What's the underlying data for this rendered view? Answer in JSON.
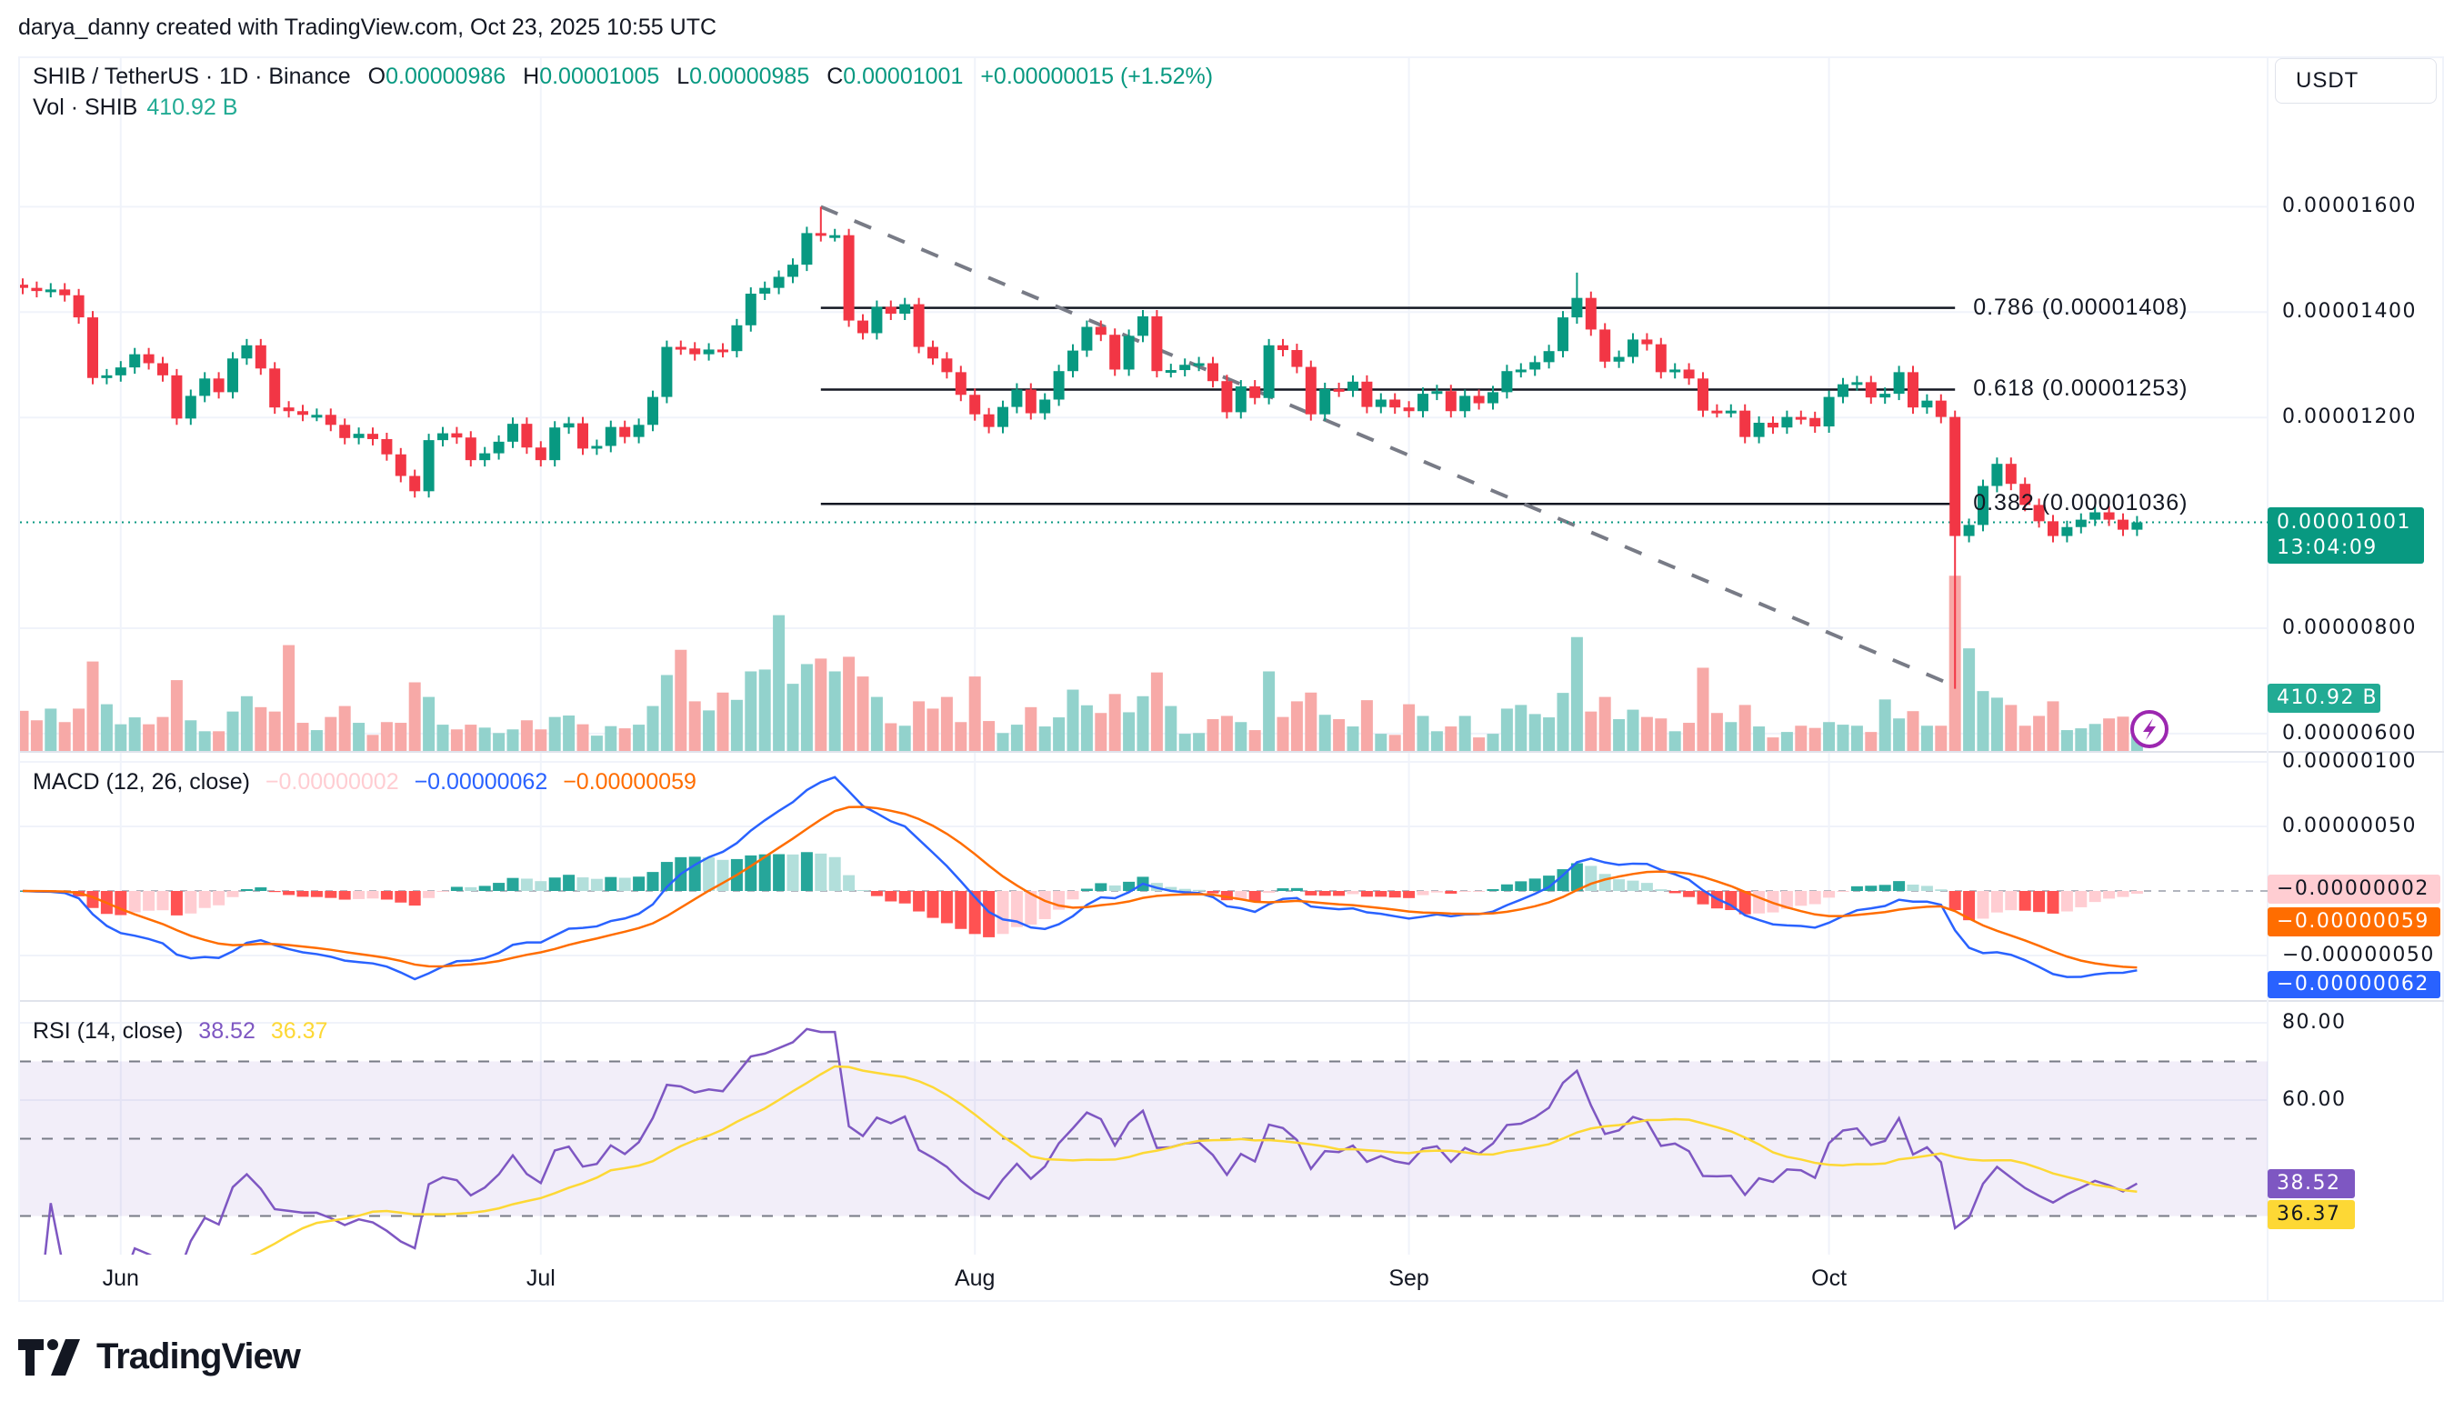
{
  "header": {
    "credit": "darya_danny created with TradingView.com, Oct 23, 2025 10:55 UTC"
  },
  "legend": {
    "symbol": "SHIB / TetherUS · 1D · Binance",
    "o_label": "O",
    "o": "0.00000986",
    "h_label": "H",
    "h": "0.00001005",
    "l_label": "L",
    "l": "0.00000985",
    "c_label": "C",
    "c": "0.00001001",
    "change": "+0.00000015 (+1.52%)",
    "vol_label": "Vol · SHIB",
    "vol": "410.92 B"
  },
  "currency_button": "USDT",
  "price_axis": {
    "ticks": [
      {
        "label": "0.00001600",
        "value": 16
      },
      {
        "label": "0.00001400",
        "value": 14
      },
      {
        "label": "0.00001200",
        "value": 12
      },
      {
        "label": "0.00000800",
        "value": 8
      },
      {
        "label": "0.00000600",
        "value": 6
      }
    ],
    "last_price": "0.00001001",
    "countdown": "13:04:09",
    "volume_badge": "410.92 B"
  },
  "macd": {
    "title": "MACD (12, 26, close)",
    "hist": "−0.00000002",
    "macd": "−0.00000062",
    "signal": "−0.00000059",
    "ticks": [
      {
        "label": "0.00000100",
        "value": 1.0
      },
      {
        "label": "0.00000050",
        "value": 0.5
      },
      {
        "label": "−0.00000050",
        "value": -0.5
      }
    ],
    "params": {
      "fast": 12,
      "slow": 26,
      "signal": 9
    }
  },
  "rsi": {
    "title": "RSI (14, close)",
    "rsi": "38.52",
    "ma": "36.37",
    "ticks": [
      {
        "label": "80.00",
        "value": 80
      },
      {
        "label": "60.00",
        "value": 60
      }
    ],
    "bands": [
      70,
      50,
      30
    ],
    "length": 14
  },
  "time_axis": [
    {
      "label": "Jun",
      "date": "2025-06-01"
    },
    {
      "label": "Jul",
      "date": "2025-07-01"
    },
    {
      "label": "Aug",
      "date": "2025-08-01"
    },
    {
      "label": "Sep",
      "date": "2025-09-01"
    },
    {
      "label": "Oct",
      "date": "2025-10-01"
    }
  ],
  "fib": {
    "from_date": "2025-07-21",
    "to_date": "2025-10-10",
    "levels": [
      {
        "label": "0.786 (0.00001408)",
        "price": 14.08
      },
      {
        "label": "0.618 (0.00001253)",
        "price": 12.53
      },
      {
        "label": "0.382 (0.00001036)",
        "price": 10.36
      }
    ]
  },
  "brand": "TradingView",
  "colors": {
    "up": "#089981",
    "down": "#f23645",
    "vol_up": "#92d2cc",
    "vol_down": "#f7a9a7",
    "macd_line": "#2962ff",
    "signal_line": "#ff6d00",
    "hist_up_strong": "#26a69a",
    "hist_up_weak": "#b2dfdb",
    "hist_down_strong": "#ff5252",
    "hist_down_weak": "#ffcdd2",
    "rsi_line": "#7e57c2",
    "rsi_ma": "#fdd835",
    "trendline": "#787b86",
    "lightning": "#9c27b0"
  },
  "chart_data": {
    "type": "candlestick",
    "price_unit": "1e-6 USDT",
    "first_date": "2025-05-25",
    "interval": "1D",
    "ylim": [
      5.67,
      18.82
    ],
    "current_price": 10.01,
    "close": [
      14.46,
      14.4,
      14.43,
      14.32,
      13.9,
      12.75,
      12.8,
      12.95,
      13.2,
      13.03,
      12.8,
      11.98,
      12.41,
      12.74,
      12.48,
      13.12,
      13.37,
      12.93,
      12.19,
      12.12,
      12.05,
      12.05,
      11.86,
      11.61,
      11.69,
      11.59,
      11.3,
      10.89,
      10.6,
      11.57,
      11.7,
      11.62,
      11.19,
      11.32,
      11.54,
      11.88,
      11.43,
      11.19,
      11.81,
      11.89,
      11.41,
      11.46,
      11.82,
      11.63,
      11.86,
      12.39,
      13.34,
      13.31,
      13.2,
      13.29,
      13.26,
      13.75,
      14.35,
      14.46,
      14.67,
      14.9,
      15.5,
      15.46,
      15.46,
      13.84,
      13.6,
      14.1,
      13.97,
      14.15,
      13.34,
      13.12,
      12.86,
      12.43,
      12.06,
      11.82,
      12.2,
      12.53,
      12.08,
      12.34,
      12.88,
      13.27,
      13.72,
      13.57,
      12.91,
      13.55,
      13.92,
      12.88,
      12.9,
      13.0,
      13.03,
      12.69,
      12.1,
      12.59,
      12.37,
      13.37,
      13.28,
      12.96,
      12.06,
      12.54,
      12.51,
      12.68,
      12.2,
      12.34,
      12.19,
      12.12,
      12.45,
      12.5,
      12.12,
      12.41,
      12.27,
      12.48,
      12.88,
      12.91,
      13.05,
      13.26,
      13.9,
      14.27,
      13.67,
      13.06,
      13.15,
      13.48,
      13.39,
      12.86,
      12.91,
      12.74,
      12.13,
      12.12,
      12.13,
      11.63,
      11.9,
      11.81,
      12.01,
      11.99,
      11.83,
      12.39,
      12.63,
      12.67,
      12.38,
      12.45,
      12.86,
      12.19,
      12.32,
      12.01,
      9.75,
      9.96,
      10.7,
      11.12,
      10.74,
      10.34,
      10.03,
      9.75,
      9.92,
      10.06,
      10.2,
      10.06,
      9.87,
      10.01
    ],
    "volume_B": [
      605,
      462,
      638,
      435,
      638,
      1348,
      704,
      402,
      506,
      402,
      512,
      1067,
      462,
      297,
      297,
      594,
      825,
      660,
      594,
      1595,
      424,
      314,
      512,
      677,
      424,
      242,
      435,
      424,
      1034,
      814,
      396,
      325,
      396,
      352,
      270,
      325,
      462,
      325,
      512,
      534,
      402,
      231,
      374,
      341,
      396,
      677,
      1144,
      1524,
      748,
      611,
      880,
      770,
      1199,
      1227,
      2046,
      1012,
      1309,
      1392,
      1199,
      1419,
      1122,
      814,
      418,
      380,
      748,
      638,
      814,
      435,
      1122,
      451,
      270,
      396,
      660,
      369,
      506,
      924,
      688,
      572,
      858,
      583,
      825,
      1183,
      677,
      259,
      270,
      479,
      528,
      435,
      314,
      1199,
      512,
      748,
      880,
      545,
      479,
      369,
      765,
      259,
      242,
      704,
      528,
      297,
      369,
      528,
      204,
      259,
      638,
      693,
      556,
      506,
      875,
      1716,
      594,
      814,
      479,
      622,
      512,
      490,
      297,
      424,
      1254,
      572,
      435,
      693,
      369,
      204,
      286,
      380,
      347,
      435,
      396,
      380,
      286,
      776,
      490,
      600,
      380,
      380,
      2640,
      1546,
      902,
      803,
      693,
      380,
      528,
      748,
      314,
      341,
      407,
      490,
      517,
      410.92
    ],
    "extremes": [
      {
        "date": "2025-07-21",
        "high": 16.0
      },
      {
        "date": "2025-09-13",
        "high": 14.75
      },
      {
        "date": "2025-10-10",
        "low": 6.85
      }
    ],
    "trendline": {
      "from": {
        "date": "2025-07-21",
        "price": 16.0
      },
      "to": {
        "date": "2025-10-10",
        "price": 6.9
      },
      "style": "dashed"
    }
  }
}
